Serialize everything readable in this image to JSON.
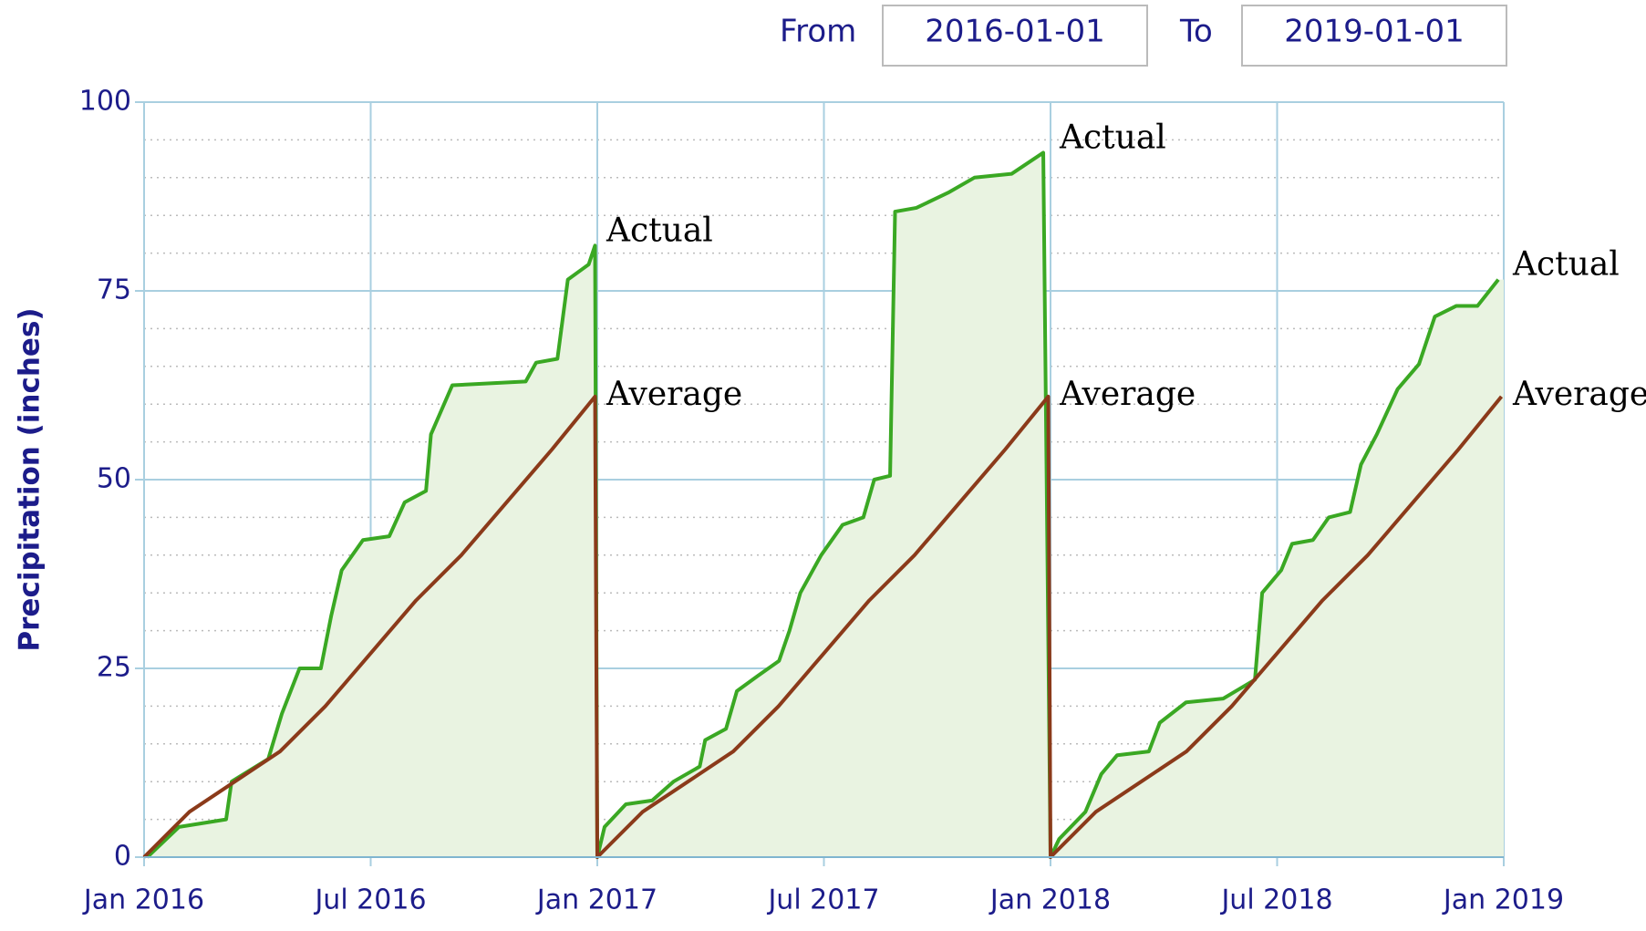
{
  "controls": {
    "from_label": "From",
    "from_value": "2016-01-01",
    "to_label": "To",
    "to_value": "2019-01-01"
  },
  "chart_data": {
    "type": "line",
    "ylabel": "Precipitation (inches)",
    "xlim": [
      2016,
      2019
    ],
    "xticks": [
      {
        "value": 2016,
        "label": "Jan 2016"
      },
      {
        "value": 2016.5,
        "label": "Jul 2016"
      },
      {
        "value": 2017,
        "label": "Jan 2017"
      },
      {
        "value": 2017.5,
        "label": "Jul 2017"
      },
      {
        "value": 2018,
        "label": "Jan 2018"
      },
      {
        "value": 2018.5,
        "label": "Jul 2018"
      },
      {
        "value": 2019,
        "label": "Jan 2019"
      }
    ],
    "ylim": [
      0,
      100
    ],
    "yticks": [
      0,
      25,
      50,
      75,
      100
    ],
    "yminorticks": [
      5,
      10,
      15,
      20,
      30,
      35,
      40,
      45,
      55,
      60,
      65,
      70,
      80,
      85,
      90,
      95
    ],
    "grid": true,
    "series": [
      {
        "name": "Actual",
        "color": "#3aa823",
        "fill": "#e9f3e1",
        "x": [
          2016.007,
          2016.077,
          2016.181,
          2016.193,
          2016.274,
          2016.304,
          2016.343,
          2016.39,
          2016.413,
          2016.436,
          2016.483,
          2016.541,
          2016.575,
          2016.622,
          2016.633,
          2016.68,
          2016.842,
          2016.865,
          2016.912,
          2016.935,
          2016.981,
          2016.995,
          2017.0,
          2017.016,
          2017.063,
          2017.121,
          2017.168,
          2017.226,
          2017.238,
          2017.284,
          2017.308,
          2017.354,
          2017.401,
          2017.424,
          2017.448,
          2017.494,
          2017.541,
          2017.587,
          2017.611,
          2017.646,
          2017.657,
          2017.704,
          2017.774,
          2017.832,
          2017.914,
          2017.984,
          2018.0,
          2018.019,
          2018.077,
          2018.112,
          2018.147,
          2018.217,
          2018.241,
          2018.299,
          2018.381,
          2018.451,
          2018.467,
          2018.509,
          2018.533,
          2018.579,
          2018.614,
          2018.661,
          2018.685,
          2018.72,
          2018.766,
          2018.813,
          2018.848,
          2018.895,
          2018.942,
          2018.988
        ],
        "values": [
          0,
          4,
          5,
          10,
          13,
          19,
          25,
          25,
          32,
          38,
          42,
          42.5,
          47,
          48.5,
          56,
          62.5,
          63,
          65.5,
          66,
          76.5,
          78.5,
          81,
          0,
          4,
          7,
          7.5,
          10,
          12,
          15.5,
          17,
          22,
          24,
          26,
          30,
          35,
          40,
          44,
          45,
          50,
          50.5,
          85.5,
          86,
          88,
          90,
          90.5,
          93.3,
          0,
          2.4,
          6,
          11,
          13.5,
          14,
          17.8,
          20.5,
          21,
          23.5,
          35,
          38,
          41.5,
          42,
          45,
          45.7,
          52,
          56,
          62,
          65.3,
          71.6,
          73,
          73,
          76.5
        ]
      },
      {
        "name": "Average",
        "color": "#8b3a1a",
        "x": [
          2016.0,
          2016.1,
          2016.2,
          2016.3,
          2016.4,
          2016.5,
          2016.6,
          2016.7,
          2016.8,
          2016.9,
          2016.995,
          2017.0,
          2017.1,
          2017.2,
          2017.3,
          2017.4,
          2017.5,
          2017.6,
          2017.7,
          2017.8,
          2017.9,
          2017.995,
          2018.0,
          2018.1,
          2018.2,
          2018.3,
          2018.4,
          2018.5,
          2018.6,
          2018.7,
          2018.8,
          2018.9,
          2018.995
        ],
        "values": [
          0,
          6,
          10,
          14,
          20,
          27,
          34,
          40,
          47,
          54,
          61,
          0,
          6,
          10,
          14,
          20,
          27,
          34,
          40,
          47,
          54,
          61,
          0,
          6,
          10,
          14,
          20,
          27,
          34,
          40,
          47,
          54,
          61
        ]
      }
    ],
    "annotations": [
      {
        "text": "Actual",
        "x": 2017,
        "y": 81
      },
      {
        "text": "Average",
        "x": 2017,
        "y": 61
      },
      {
        "text": "Actual",
        "x": 2018,
        "y": 93.3
      },
      {
        "text": "Average",
        "x": 2018,
        "y": 61
      },
      {
        "text": "Actual",
        "x": 2019,
        "y": 76.5
      },
      {
        "text": "Average",
        "x": 2019,
        "y": 61
      }
    ]
  }
}
